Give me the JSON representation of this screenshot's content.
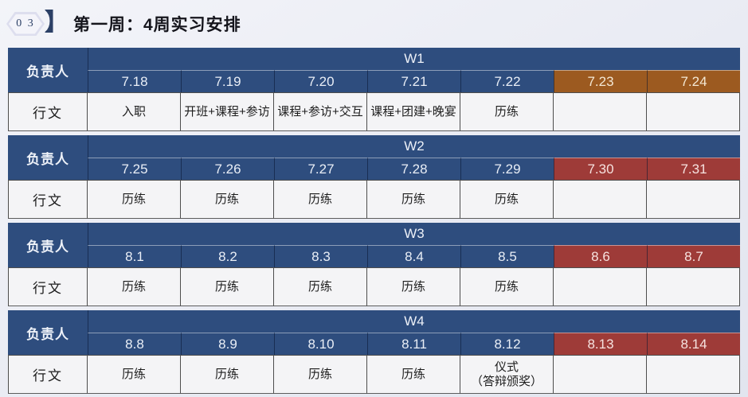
{
  "header": {
    "badge": "0 3",
    "bracket": "】",
    "title": "第一周：4周实习安排"
  },
  "colors": {
    "navy": "#2e4d7e",
    "orange": "#9c5a20",
    "red": "#9e3b38",
    "cell-bg": "#f4f4f6"
  },
  "table": {
    "owner_label": "负责人",
    "activity_label": "行文",
    "weeks": [
      {
        "week_label": "W1",
        "days": [
          {
            "date": "7.18",
            "activity": "入职",
            "type": "normal"
          },
          {
            "date": "7.19",
            "activity": "开班+课程+参访",
            "type": "normal"
          },
          {
            "date": "7.20",
            "activity": "课程+参访+交互",
            "type": "normal"
          },
          {
            "date": "7.21",
            "activity": "课程+团建+晚宴",
            "type": "normal"
          },
          {
            "date": "7.22",
            "activity": "历练",
            "type": "normal"
          },
          {
            "date": "7.23",
            "activity": "",
            "type": "orange"
          },
          {
            "date": "7.24",
            "activity": "",
            "type": "orange"
          }
        ]
      },
      {
        "week_label": "W2",
        "days": [
          {
            "date": "7.25",
            "activity": "历练",
            "type": "normal"
          },
          {
            "date": "7.26",
            "activity": "历练",
            "type": "normal"
          },
          {
            "date": "7.27",
            "activity": "历练",
            "type": "normal"
          },
          {
            "date": "7.28",
            "activity": "历练",
            "type": "normal"
          },
          {
            "date": "7.29",
            "activity": "历练",
            "type": "normal"
          },
          {
            "date": "7.30",
            "activity": "",
            "type": "red"
          },
          {
            "date": "7.31",
            "activity": "",
            "type": "red"
          }
        ]
      },
      {
        "week_label": "W3",
        "days": [
          {
            "date": "8.1",
            "activity": "历练",
            "type": "normal"
          },
          {
            "date": "8.2",
            "activity": "历练",
            "type": "normal"
          },
          {
            "date": "8.3",
            "activity": "历练",
            "type": "normal"
          },
          {
            "date": "8.4",
            "activity": "历练",
            "type": "normal"
          },
          {
            "date": "8.5",
            "activity": "历练",
            "type": "normal"
          },
          {
            "date": "8.6",
            "activity": "",
            "type": "red"
          },
          {
            "date": "8.7",
            "activity": "",
            "type": "red"
          }
        ]
      },
      {
        "week_label": "W4",
        "days": [
          {
            "date": "8.8",
            "activity": "历练",
            "type": "normal"
          },
          {
            "date": "8.9",
            "activity": "历练",
            "type": "normal"
          },
          {
            "date": "8.10",
            "activity": "历练",
            "type": "normal"
          },
          {
            "date": "8.11",
            "activity": "历练",
            "type": "normal"
          },
          {
            "date": "8.12",
            "activity": "仪式\n（答辩颁奖）",
            "type": "normal"
          },
          {
            "date": "8.13",
            "activity": "",
            "type": "red"
          },
          {
            "date": "8.14",
            "activity": "",
            "type": "red"
          }
        ]
      }
    ]
  }
}
